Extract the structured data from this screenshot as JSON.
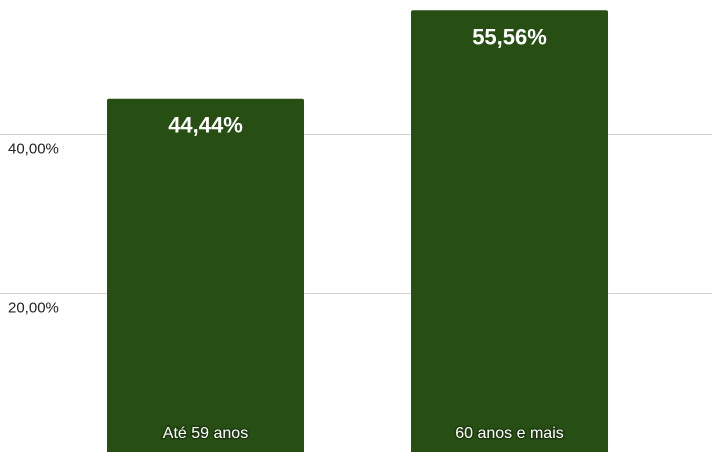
{
  "chart_data": {
    "type": "bar",
    "categories": [
      "Até 59 anos",
      "60 anos e mais"
    ],
    "values": [
      44.44,
      55.56
    ],
    "value_labels": [
      "44,44%",
      "55,56%"
    ],
    "ylim": [
      0,
      57.5
    ],
    "yticks": [
      {
        "value": 20,
        "label": "20,00%"
      },
      {
        "value": 40,
        "label": "40,00%"
      }
    ],
    "grid": true,
    "bar_color": "#274e13",
    "grid_color": "#d0d0d0"
  }
}
